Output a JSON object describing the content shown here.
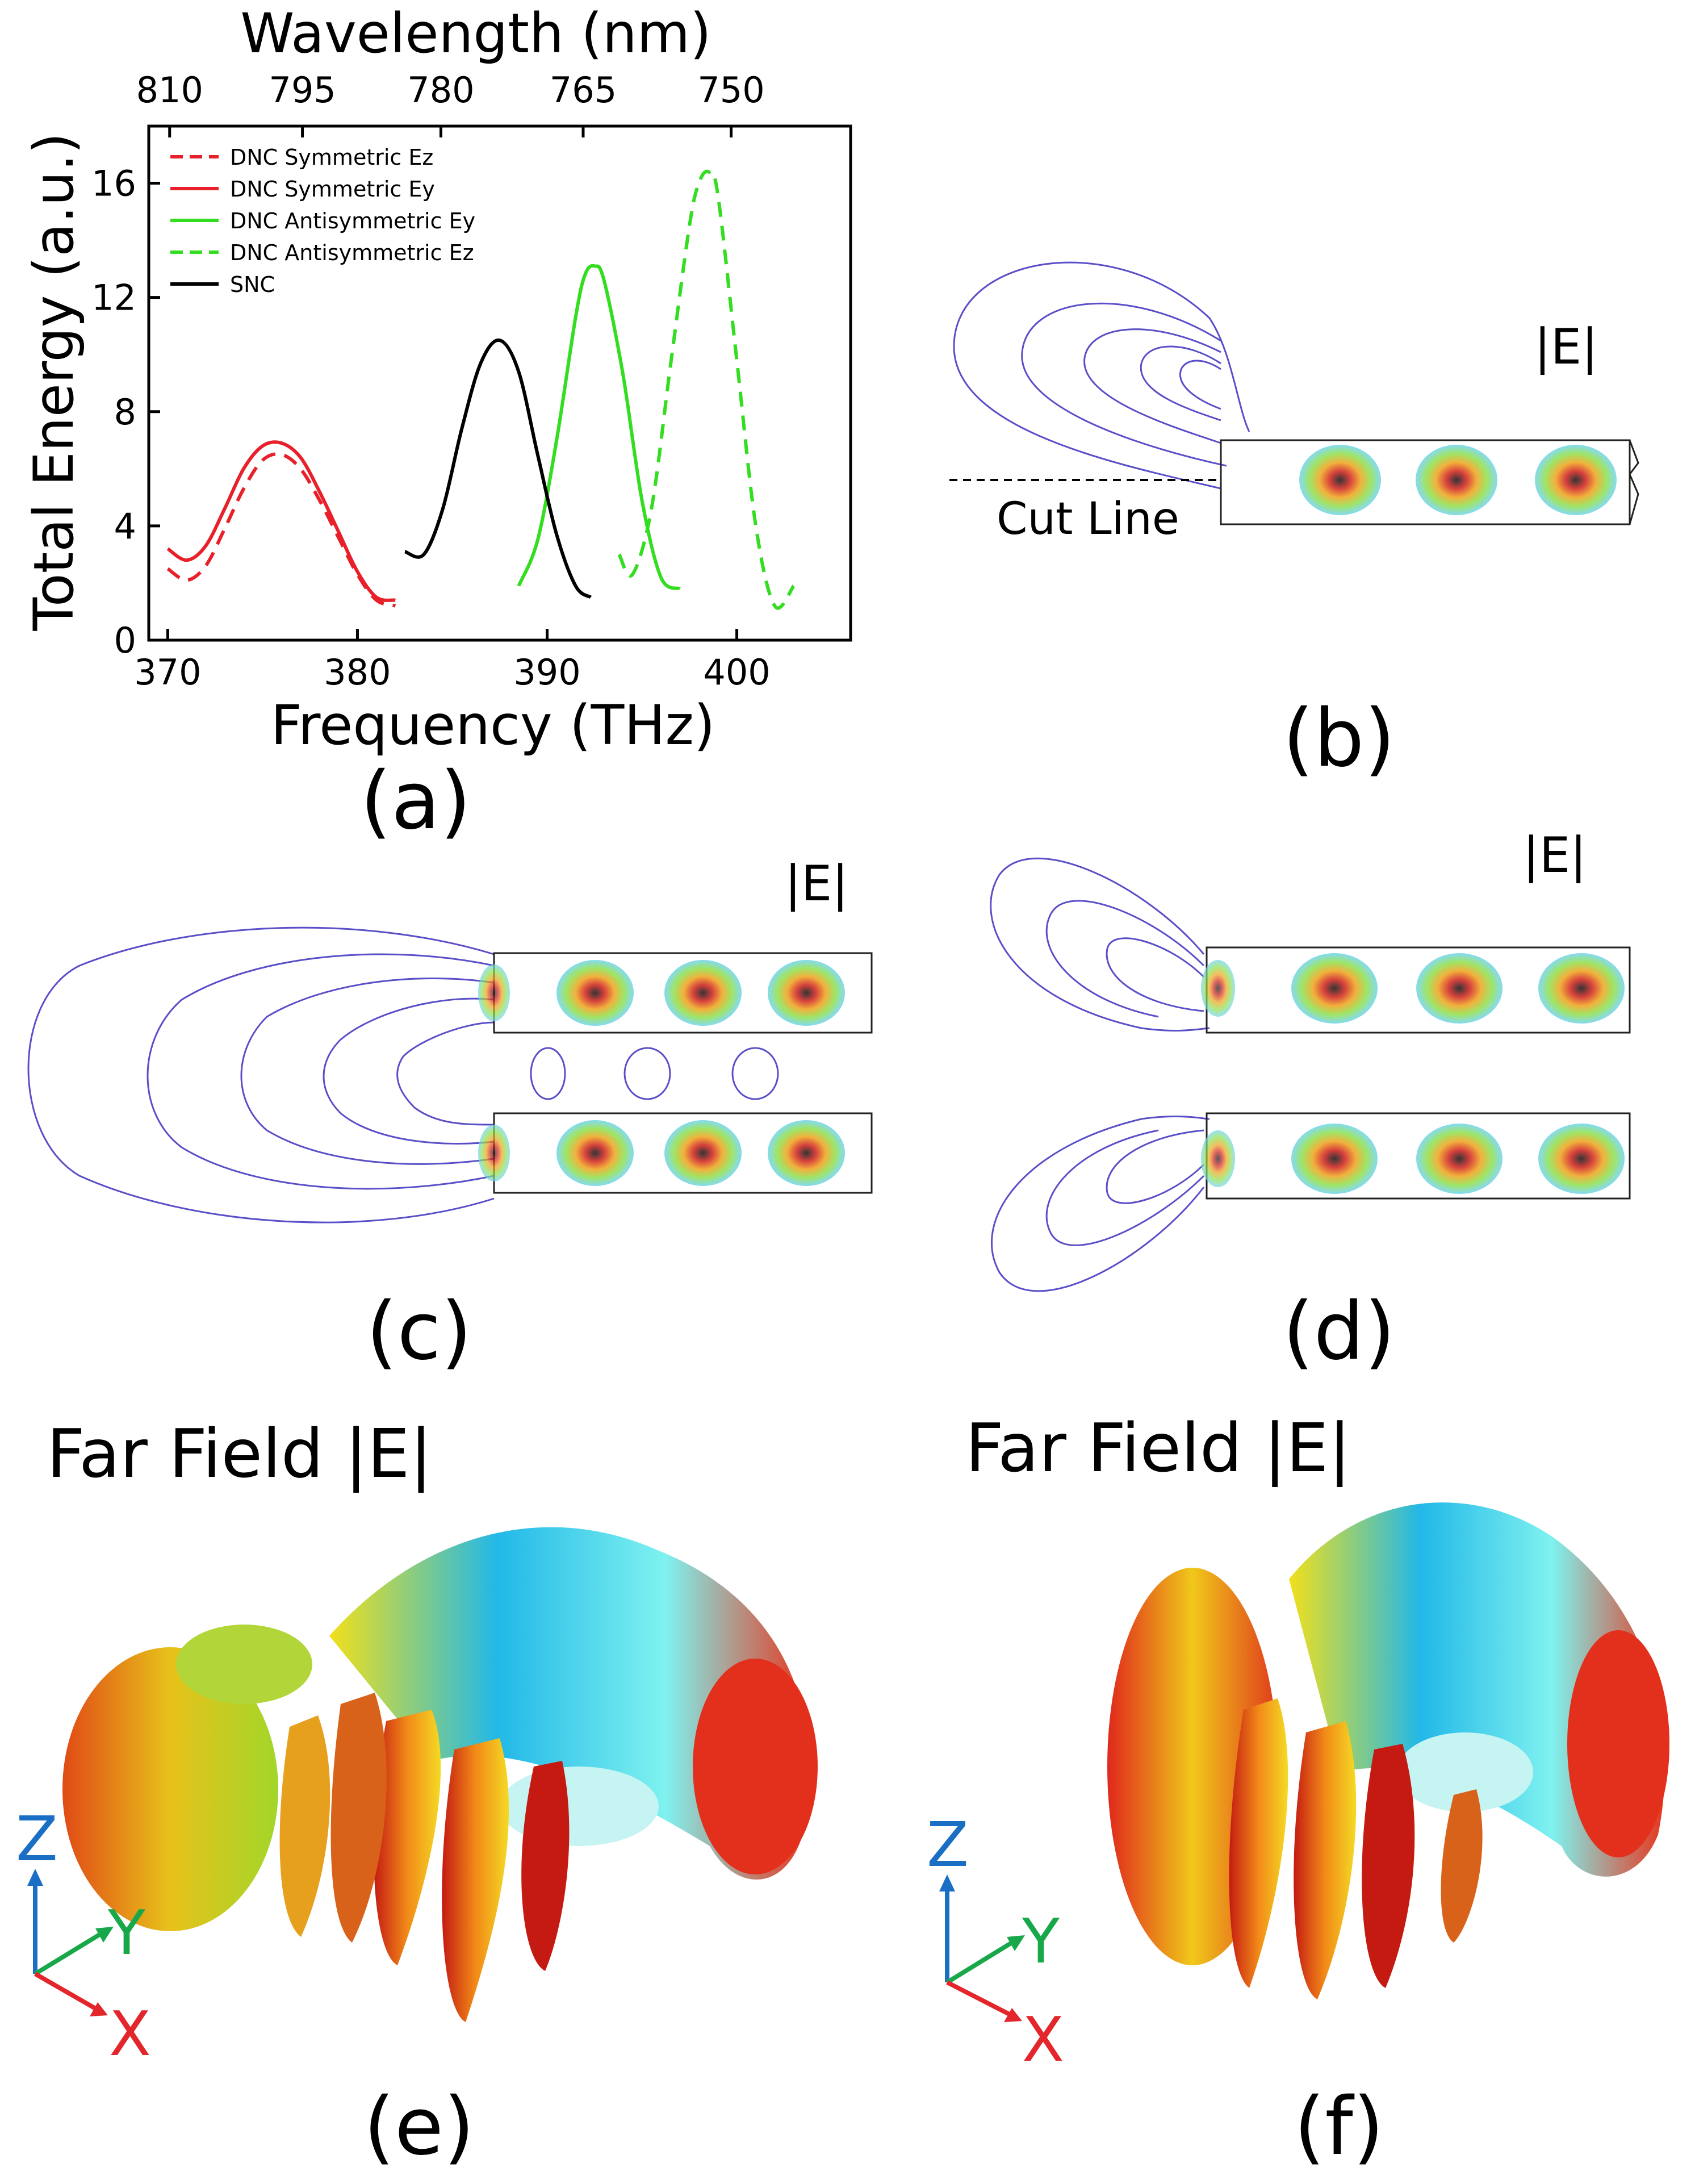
{
  "chart_data": {
    "type": "line",
    "panel_label": "(a)",
    "title": "Wavelength (nm)",
    "xlabel": "Frequency (THz)",
    "ylabel": "Total Energy (a.u.)",
    "xlim": [
      369,
      406
    ],
    "ylim": [
      0,
      18
    ],
    "xticks": [
      "370",
      "380",
      "390",
      "400"
    ],
    "yticks": [
      "0",
      "4",
      "8",
      "12",
      "16"
    ],
    "top_axis": {
      "label": "Wavelength (nm)",
      "ticks": [
        {
          "label": "810",
          "freq": 370.1
        },
        {
          "label": "795",
          "freq": 377.1
        },
        {
          "label": "780",
          "freq": 384.4
        },
        {
          "label": "765",
          "freq": 391.9
        },
        {
          "label": "750",
          "freq": 399.7
        }
      ]
    },
    "series": [
      {
        "name": "DNC Symmetric Ez",
        "color": "#e8202a",
        "dash": "dashed",
        "x": [
          370,
          371,
          372,
          373,
          374,
          375,
          376,
          377,
          378,
          379,
          380,
          381,
          382
        ],
        "y": [
          2.5,
          2.1,
          2.6,
          3.9,
          5.3,
          6.3,
          6.5,
          6.0,
          4.9,
          3.6,
          2.3,
          1.4,
          1.2
        ]
      },
      {
        "name": "DNC Symmetric Ey",
        "color": "#e8202a",
        "dash": "solid",
        "x": [
          370,
          371,
          372,
          373,
          374,
          375,
          376,
          377,
          378,
          379,
          380,
          381,
          382
        ],
        "y": [
          3.2,
          2.8,
          3.3,
          4.6,
          6.0,
          6.8,
          6.9,
          6.4,
          5.2,
          3.8,
          2.4,
          1.5,
          1.4
        ]
      },
      {
        "name": "DNC Antisymmetric Ey",
        "color": "#33dd1f",
        "dash": "solid",
        "x": [
          388.5,
          389.5,
          390.5,
          391.5,
          392,
          392.5,
          393,
          394,
          395,
          396,
          397
        ],
        "y": [
          1.9,
          3.5,
          7.0,
          11.3,
          12.8,
          13.1,
          12.6,
          9.3,
          4.9,
          2.2,
          1.8
        ]
      },
      {
        "name": "DNC Antisymmetric Ez",
        "color": "#33dd1f",
        "dash": "dashed",
        "x": [
          393.8,
          394.5,
          395.5,
          396.5,
          397.5,
          398,
          398.5,
          399,
          400,
          401,
          402,
          403
        ],
        "y": [
          3.0,
          2.3,
          4.6,
          9.6,
          14.5,
          16.0,
          16.4,
          15.6,
          9.8,
          4.0,
          1.2,
          1.9
        ]
      },
      {
        "name": "SNC",
        "color": "#000000",
        "dash": "solid",
        "x": [
          382.5,
          383.5,
          384.5,
          385.5,
          386.5,
          387.5,
          388.5,
          389.5,
          390.5,
          391.5,
          392.3
        ],
        "y": [
          3.1,
          3.0,
          4.6,
          7.4,
          9.7,
          10.5,
          9.4,
          6.5,
          3.7,
          1.9,
          1.5
        ]
      }
    ]
  },
  "panels": {
    "b": {
      "label": "(b)",
      "field_label": "|E|",
      "cut_line_label": "Cut Line"
    },
    "c": {
      "label": "(c)",
      "field_label": "|E|"
    },
    "d": {
      "label": "(d)",
      "field_label": "|E|"
    },
    "e": {
      "label": "(e)",
      "title": "Far Field |E|"
    },
    "f": {
      "label": "(f)",
      "title": "Far Field |E|"
    }
  },
  "axes_triad": {
    "z": "Z",
    "y": "Y",
    "x": "X",
    "z_color": "#1a6fc4",
    "y_color": "#18a84a",
    "x_color": "#e3262b"
  }
}
